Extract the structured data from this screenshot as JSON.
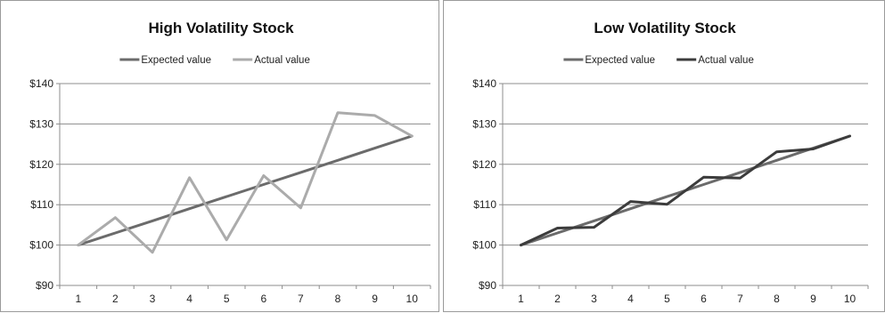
{
  "chart_data": [
    {
      "type": "line",
      "title": "High Volatility Stock",
      "categories": [
        "1",
        "2",
        "3",
        "4",
        "5",
        "6",
        "7",
        "8",
        "9",
        "10"
      ],
      "ylim": [
        90,
        140
      ],
      "yticks": [
        "$90",
        "$100",
        "$110",
        "$120",
        "$130",
        "$140"
      ],
      "grid": true,
      "legend": "top",
      "series": [
        {
          "name": "Expected value",
          "color": "#6b6b6b",
          "values": [
            100,
            103,
            106,
            109,
            112,
            115,
            118,
            121,
            124,
            127
          ]
        },
        {
          "name": "Actual value",
          "color": "#ababab",
          "values": [
            100,
            106.8,
            98.2,
            116.7,
            101.3,
            117.2,
            109.2,
            132.8,
            132.1,
            127
          ]
        }
      ]
    },
    {
      "type": "line",
      "title": "Low Volatility Stock",
      "categories": [
        "1",
        "2",
        "3",
        "4",
        "5",
        "6",
        "7",
        "8",
        "9",
        "10"
      ],
      "ylim": [
        90,
        140
      ],
      "yticks": [
        "$90",
        "$100",
        "$110",
        "$120",
        "$130",
        "$140"
      ],
      "grid": true,
      "legend": "top",
      "series": [
        {
          "name": "Expected value",
          "color": "#6b6b6b",
          "values": [
            100,
            103,
            106,
            109,
            112,
            115,
            118,
            121,
            124,
            127
          ]
        },
        {
          "name": "Actual value",
          "color": "#3c3c3c",
          "values": [
            100,
            104.2,
            104.4,
            110.8,
            110.1,
            116.8,
            116.6,
            123.1,
            123.8,
            127
          ]
        }
      ]
    }
  ]
}
